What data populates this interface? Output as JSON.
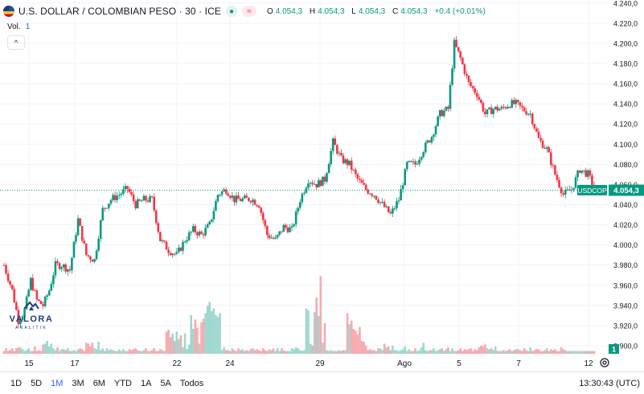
{
  "header": {
    "symbol_title": "U.S. DOLLAR / COLOMBIAN PESO · 30 · ICE",
    "status_glyph": "●",
    "indicator_glyph": "≈",
    "ohlc": {
      "o_label": "O",
      "o_value": "4.054,3",
      "h_label": "H",
      "h_value": "4.054,3",
      "l_label": "L",
      "l_value": "4.054,3",
      "c_label": "C",
      "c_value": "4.054,3",
      "change": "+0,4 (+0,01%)"
    }
  },
  "volume_label": {
    "label": "Vol.",
    "value": "1"
  },
  "collapse_glyph": "^",
  "logo": {
    "name": "VALORA",
    "sub": "ANALITIK"
  },
  "colors": {
    "up": "#089981",
    "down": "#f23645",
    "vol_up": "#9fd8cf",
    "vol_down": "#f7aab0",
    "last_price_line": "#089981"
  },
  "chart_data": {
    "type": "candlestick",
    "symbol": "USDCOP",
    "last_price": 4054.3,
    "last_price_label": "4.054,3",
    "symbol_tag": "USDCOP",
    "volume_tag": "1",
    "y_ticks": [
      3900,
      3920,
      3940,
      3960,
      3980,
      4000,
      4020,
      4040,
      4060,
      4080,
      4100,
      4120,
      4140,
      4160,
      4180,
      4200,
      4220,
      4240
    ],
    "y_tick_labels": [
      "3.900,0",
      "3.920,0",
      "3.940,0",
      "3.960,0",
      "3.980,0",
      "4.000,0",
      "4.020,0",
      "4.040,0",
      "4.060,0",
      "4.080,0",
      "4.100,0",
      "4.120,0",
      "4.140,0",
      "4.160,0",
      "4.180,0",
      "4.200,0",
      "4.220,0",
      "4.240,0"
    ],
    "ylim": [
      3892,
      4243
    ],
    "x_labels": [
      "15",
      "17",
      "22",
      "24",
      "29",
      "Ago",
      "5",
      "7",
      "12"
    ],
    "anchors": [
      [
        0,
        3980
      ],
      [
        4,
        3955
      ],
      [
        7,
        3925
      ],
      [
        10,
        3935
      ],
      [
        13,
        3965
      ],
      [
        16,
        3945
      ],
      [
        19,
        3940
      ],
      [
        22,
        3955
      ],
      [
        25,
        3980
      ],
      [
        28,
        3980
      ],
      [
        32,
        3975
      ],
      [
        36,
        4025
      ],
      [
        40,
        3990
      ],
      [
        44,
        3985
      ],
      [
        48,
        4035
      ],
      [
        52,
        4045
      ],
      [
        56,
        4050
      ],
      [
        60,
        4056
      ],
      [
        64,
        4040
      ],
      [
        68,
        4045
      ],
      [
        72,
        4045
      ],
      [
        76,
        4005
      ],
      [
        80,
        3995
      ],
      [
        84,
        3990
      ],
      [
        88,
        4005
      ],
      [
        92,
        4015
      ],
      [
        96,
        4010
      ],
      [
        100,
        4020
      ],
      [
        104,
        4050
      ],
      [
        108,
        4055
      ],
      [
        112,
        4045
      ],
      [
        116,
        4045
      ],
      [
        120,
        4046
      ],
      [
        124,
        4040
      ],
      [
        128,
        4010
      ],
      [
        132,
        4005
      ],
      [
        136,
        4018
      ],
      [
        140,
        4015
      ],
      [
        144,
        4045
      ],
      [
        148,
        4065
      ],
      [
        152,
        4060
      ],
      [
        156,
        4065
      ],
      [
        160,
        4102
      ],
      [
        164,
        4085
      ],
      [
        168,
        4080
      ],
      [
        172,
        4065
      ],
      [
        176,
        4055
      ],
      [
        180,
        4050
      ],
      [
        184,
        4040
      ],
      [
        188,
        4030
      ],
      [
        192,
        4045
      ],
      [
        196,
        4080
      ],
      [
        200,
        4080
      ],
      [
        204,
        4095
      ],
      [
        208,
        4108
      ],
      [
        212,
        4130
      ],
      [
        216,
        4135
      ],
      [
        219,
        4200
      ],
      [
        222,
        4185
      ],
      [
        226,
        4160
      ],
      [
        230,
        4150
      ],
      [
        234,
        4130
      ],
      [
        238,
        4135
      ],
      [
        242,
        4135
      ],
      [
        246,
        4140
      ],
      [
        249,
        4140
      ],
      [
        252,
        4135
      ],
      [
        256,
        4130
      ],
      [
        260,
        4105
      ],
      [
        264,
        4095
      ],
      [
        268,
        4070
      ],
      [
        272,
        4050
      ],
      [
        276,
        4055
      ],
      [
        280,
        4075
      ],
      [
        284,
        4070
      ],
      [
        287,
        4057
      ]
    ],
    "volume_bars": [
      3,
      6,
      3,
      4,
      6,
      3,
      6,
      7,
      7,
      5,
      3,
      4,
      6,
      3,
      3,
      8,
      3,
      4,
      3,
      10,
      11,
      14,
      8,
      11,
      6,
      4,
      7,
      3,
      5,
      5,
      4,
      6,
      3,
      3,
      4,
      3,
      5,
      6,
      5,
      3,
      12,
      11,
      8,
      12,
      6,
      5,
      13,
      4,
      6,
      3,
      6,
      4,
      5,
      4,
      3,
      3,
      5,
      3,
      5,
      3,
      3,
      5,
      4,
      5,
      6,
      4,
      3,
      3,
      4,
      6,
      3,
      3,
      4,
      6,
      3,
      3,
      5,
      4,
      3,
      24,
      26,
      18,
      22,
      14,
      24,
      16,
      20,
      7,
      22,
      5,
      10,
      42,
      27,
      37,
      28,
      11,
      34,
      38,
      44,
      52,
      56,
      46,
      49,
      42,
      40,
      44,
      4,
      7,
      4,
      4,
      3,
      6,
      4,
      3,
      6,
      4,
      5,
      3,
      4,
      3,
      5,
      6,
      4,
      5,
      4,
      3,
      6,
      4,
      3,
      5,
      4,
      6,
      3,
      6,
      3,
      6,
      4,
      3,
      3,
      3,
      6,
      5,
      7,
      6,
      4,
      3,
      4,
      49,
      47,
      11,
      9,
      45,
      61,
      41,
      84,
      12,
      33,
      4,
      3,
      4,
      3,
      3,
      3,
      4,
      3,
      4,
      4,
      44,
      32,
      36,
      27,
      25,
      21,
      29,
      14,
      13,
      9,
      4,
      5,
      4,
      4,
      3,
      6,
      6,
      4,
      11,
      7,
      8,
      4,
      9,
      4,
      4,
      3,
      4,
      5,
      8,
      3,
      5,
      3,
      3,
      6,
      3,
      4,
      7,
      12,
      4,
      3,
      4,
      4,
      6,
      3,
      4,
      5,
      6,
      3,
      5,
      7,
      3,
      6,
      3,
      3,
      4,
      6,
      3,
      5,
      4,
      5,
      6,
      3,
      5,
      4,
      7,
      9,
      8,
      10,
      6,
      5,
      6,
      4,
      8,
      3,
      3,
      3,
      4,
      3,
      4,
      5,
      3,
      4,
      5,
      5,
      4,
      3,
      6,
      4,
      3,
      7,
      3,
      4,
      5,
      5,
      3,
      3,
      4,
      6,
      3,
      5,
      4,
      5,
      3,
      3,
      7,
      5,
      4
    ],
    "vol_max": 100
  },
  "toolbar": {
    "ranges": [
      "1D",
      "5D",
      "1M",
      "3M",
      "6M",
      "YTD",
      "1A",
      "5A",
      "Todos"
    ],
    "active_range": "1M",
    "clock": "13:30:43 (UTC)"
  }
}
